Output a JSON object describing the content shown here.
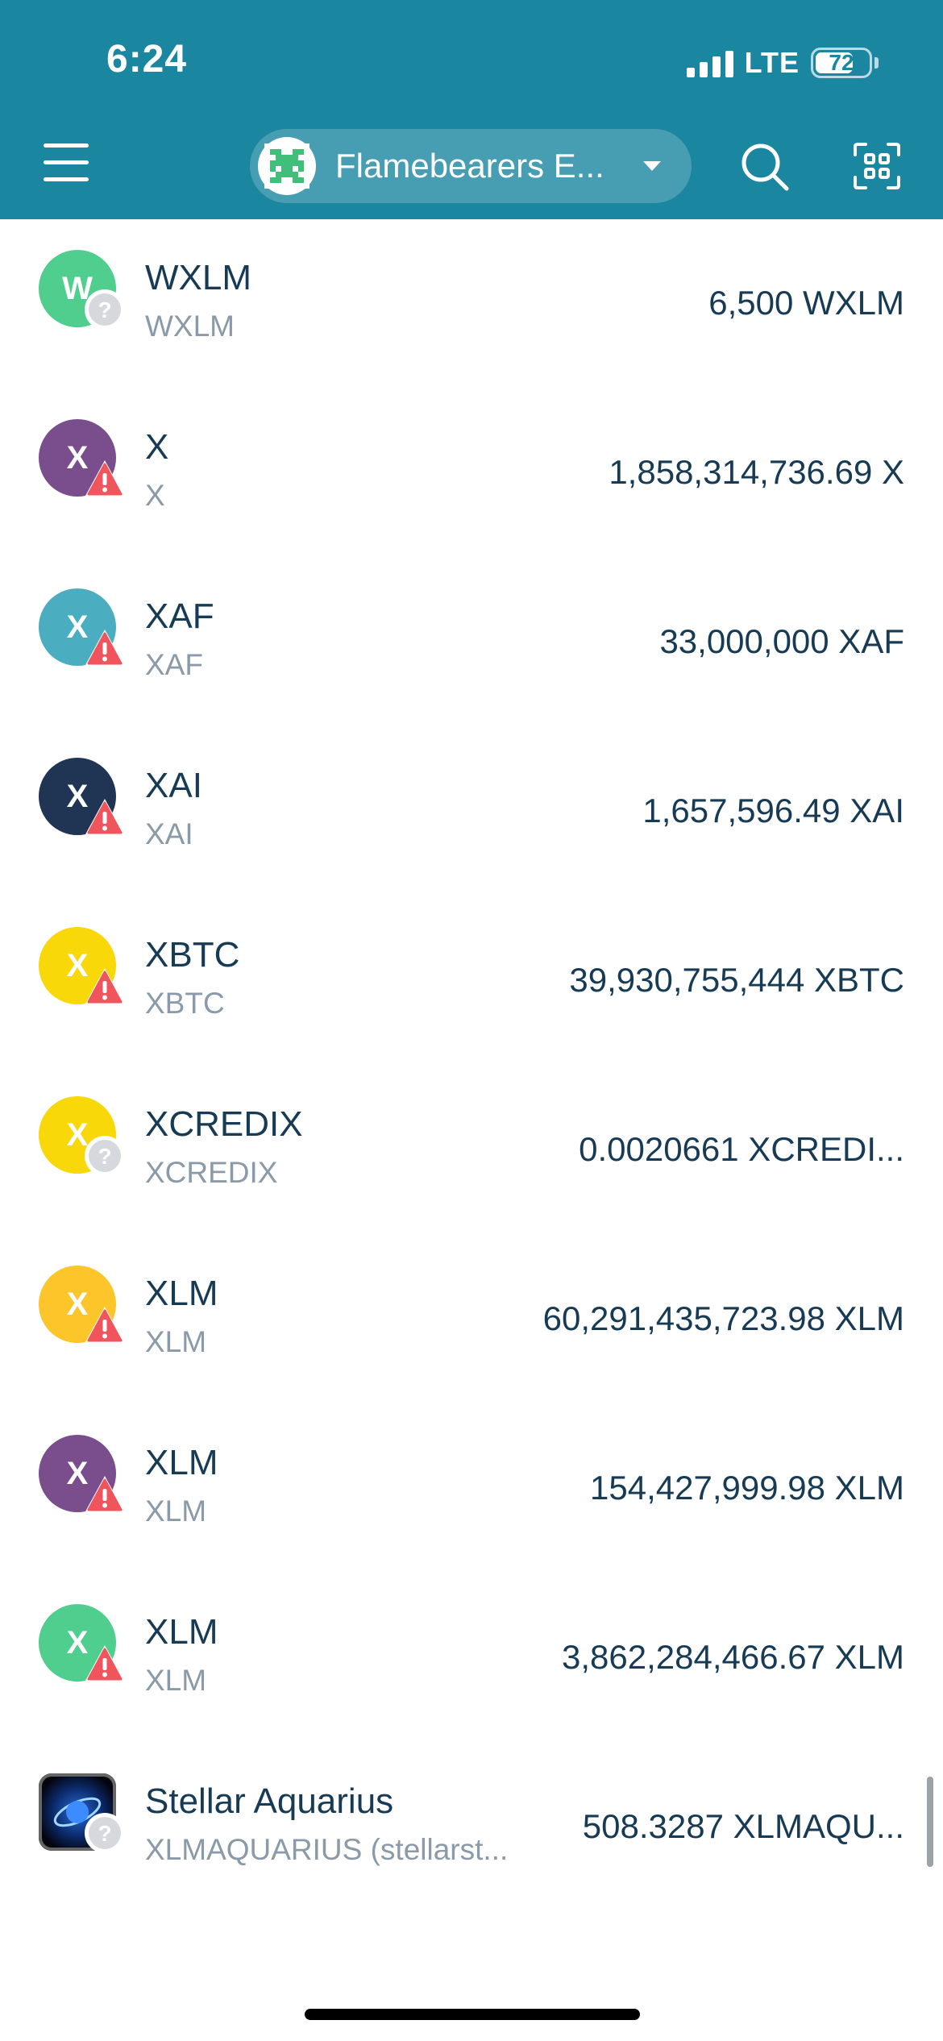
{
  "status_bar": {
    "time": "6:24",
    "network": "LTE",
    "battery": "72",
    "battery_level": 0.72
  },
  "header": {
    "menu_icon": "hamburger-menu-icon",
    "account_name": "Flamebearers E...",
    "account_icon": "pixel-avatar-icon",
    "dropdown_icon": "caret-down-icon",
    "search_icon": "search-icon",
    "scan_icon": "qr-scan-icon"
  },
  "colors": {
    "header": "#1a86a0",
    "primary_text": "#173a55",
    "secondary_text": "#8a9aa8",
    "warning_badge": "#f0545c",
    "unknown_badge": "#d5d8dc"
  },
  "assets": [
    {
      "letter": "W",
      "name": "WXLM",
      "code": "WXLM",
      "balance": "6,500 WXLM",
      "color": "#4fce8e",
      "badge": "unknown"
    },
    {
      "letter": "X",
      "name": "X",
      "code": "X",
      "balance": "1,858,314,736.69 X",
      "color": "#7a4e8c",
      "badge": "warning"
    },
    {
      "letter": "X",
      "name": "XAF",
      "code": "XAF",
      "balance": "33,000,000 XAF",
      "color": "#4aaec0",
      "badge": "warning"
    },
    {
      "letter": "X",
      "name": "XAI",
      "code": "XAI",
      "balance": "1,657,596.49 XAI",
      "color": "#1f3553",
      "badge": "warning"
    },
    {
      "letter": "X",
      "name": "XBTC",
      "code": "XBTC",
      "balance": "39,930,755,444 XBTC",
      "color": "#f9d80a",
      "badge": "warning"
    },
    {
      "letter": "X",
      "name": "XCREDIX",
      "code": "XCREDIX",
      "balance": "0.0020661 XCREDI...",
      "color": "#f9d80a",
      "badge": "unknown"
    },
    {
      "letter": "X",
      "name": "XLM",
      "code": "XLM",
      "balance": "60,291,435,723.98 XLM",
      "color": "#fcc52a",
      "badge": "warning"
    },
    {
      "letter": "X",
      "name": "XLM",
      "code": "XLM",
      "balance": "154,427,999.98 XLM",
      "color": "#7a4e8c",
      "badge": "warning"
    },
    {
      "letter": "X",
      "name": "XLM",
      "code": "XLM",
      "balance": "3,862,284,466.67 XLM",
      "color": "#4fce8e",
      "badge": "warning"
    },
    {
      "letter": "",
      "name": "Stellar Aquarius",
      "code": "XLMAQUARIUS (stellarst...",
      "balance": "508.3287 XLMAQU...",
      "color": "#0b0b1e",
      "badge": "unknown",
      "icon": "stellar-aquarius-logo-icon"
    }
  ]
}
